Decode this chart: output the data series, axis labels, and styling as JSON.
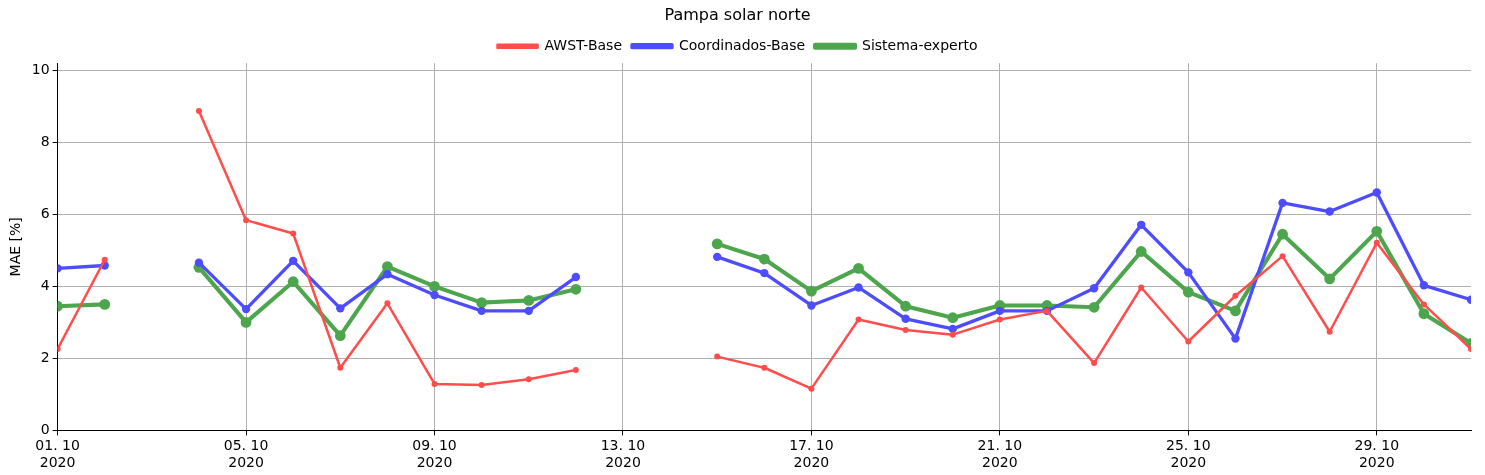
{
  "chart_data": {
    "type": "line",
    "title": "Pampa solar norte",
    "ylabel": "MAE [%]",
    "x": [
      "2020-10-01",
      "2020-10-02",
      "2020-10-03",
      "2020-10-04",
      "2020-10-05",
      "2020-10-06",
      "2020-10-07",
      "2020-10-08",
      "2020-10-09",
      "2020-10-10",
      "2020-10-11",
      "2020-10-12",
      "2020-10-13",
      "2020-10-14",
      "2020-10-15",
      "2020-10-16",
      "2020-10-17",
      "2020-10-18",
      "2020-10-19",
      "2020-10-20",
      "2020-10-21",
      "2020-10-22",
      "2020-10-23",
      "2020-10-24",
      "2020-10-25",
      "2020-10-26",
      "2020-10-27",
      "2020-10-28",
      "2020-10-29",
      "2020-10-30",
      "2020-10-31"
    ],
    "series": [
      {
        "name": "AWST-Base",
        "color": "#ff4d4d",
        "values": [
          2.26,
          4.74,
          null,
          8.87,
          5.84,
          5.47,
          1.74,
          3.53,
          1.29,
          1.26,
          1.42,
          1.68,
          null,
          null,
          2.05,
          1.74,
          1.16,
          3.08,
          2.79,
          2.66,
          3.08,
          3.32,
          1.87,
          3.97,
          2.47,
          3.74,
          4.84,
          2.74,
          5.21,
          3.5,
          2.26
        ]
      },
      {
        "name": "Coordinados-Base",
        "color": "#4d4dff",
        "values": [
          4.5,
          4.58,
          null,
          4.66,
          3.37,
          4.71,
          3.39,
          4.34,
          3.76,
          3.32,
          3.32,
          4.26,
          null,
          null,
          4.82,
          4.37,
          3.47,
          3.97,
          3.1,
          2.82,
          3.32,
          3.32,
          3.95,
          5.71,
          4.39,
          2.55,
          6.32,
          6.08,
          6.61,
          4.03,
          3.63
        ]
      },
      {
        "name": "Sistema-experto",
        "color": "#4da64d",
        "values": [
          3.45,
          3.5,
          null,
          4.53,
          3.0,
          4.13,
          2.63,
          4.55,
          4.0,
          3.55,
          3.61,
          3.92,
          null,
          null,
          5.18,
          4.76,
          3.87,
          4.5,
          3.45,
          3.13,
          3.47,
          3.47,
          3.42,
          4.97,
          3.84,
          3.32,
          5.45,
          4.21,
          5.53,
          3.24,
          2.42
        ]
      }
    ],
    "xlim": [
      "2020-10-01",
      "2020-10-31"
    ],
    "xticks": [
      {
        "value": "2020-10-01",
        "label": "01. 10\n2020"
      },
      {
        "value": "2020-10-05",
        "label": "05. 10\n2020"
      },
      {
        "value": "2020-10-09",
        "label": "09. 10\n2020"
      },
      {
        "value": "2020-10-13",
        "label": "13. 10\n2020"
      },
      {
        "value": "2020-10-17",
        "label": "17. 10\n2020"
      },
      {
        "value": "2020-10-21",
        "label": "21. 10\n2020"
      },
      {
        "value": "2020-10-25",
        "label": "25. 10\n2020"
      },
      {
        "value": "2020-10-29",
        "label": "29. 10\n2020"
      }
    ],
    "ylim": [
      0,
      10.2
    ],
    "yticks": [
      0,
      2,
      4,
      6,
      8,
      10
    ],
    "grid": true,
    "legend": "top",
    "marker": "circle",
    "line_style": "solid"
  }
}
